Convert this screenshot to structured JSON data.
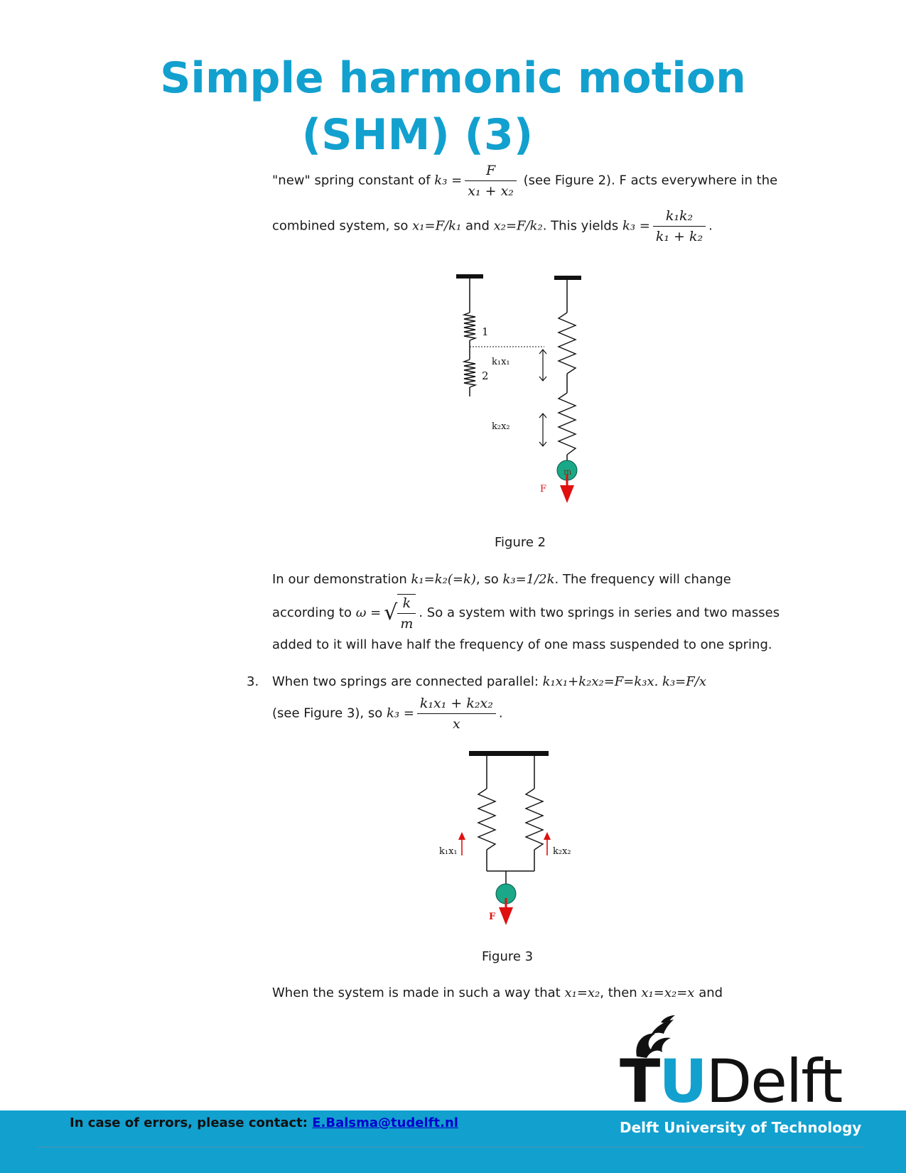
{
  "title": {
    "line1": "Simple harmonic motion",
    "line2": "(SHM) (3)"
  },
  "para1": {
    "pre": "\"new\" spring constant of ",
    "k3": "k₃ =",
    "frac_num": "F",
    "frac_den": "x₁ + x₂",
    "post": "(see Figure 2). F acts everywhere in the"
  },
  "para2": {
    "pre": "combined system, so ",
    "eq1": "x₁=F/k₁",
    "and": " and ",
    "eq2": "x₂=F/k₂",
    "yields": ". This yields ",
    "k3": "k₃ =",
    "frac_num": "k₁k₂",
    "frac_den": "k₁ + k₂",
    "end": "."
  },
  "figure2": {
    "label_1": "1",
    "label_2": "2",
    "label_k1x1": "k₁x₁",
    "label_k2x2": "k₂x₂",
    "label_m": "m",
    "label_F": "F",
    "caption": "Figure 2"
  },
  "para3": {
    "pre": "In our demonstration ",
    "eq": "k₁=k₂(=k)",
    "mid": ", so ",
    "eq2": "k₃=1/2k",
    "post": ". The frequency will change"
  },
  "para4": {
    "pre": "according to ",
    "omega": "ω =",
    "sqrt_num": "k",
    "sqrt_den": "m",
    "post": ". So a system with two springs in series and two masses"
  },
  "para5": {
    "text": "added to it will have half the frequency of one mass suspended to one spring."
  },
  "item3": {
    "number": "3.",
    "pre": "When two springs are connected parallel: ",
    "eq": "k₁x₁+k₂x₂=F=k₃x. k₃=F/x"
  },
  "para6": {
    "pre": "(see Figure 3), so ",
    "k3": "k₃ =",
    "frac_num": "k₁x₁ + k₂x₂",
    "frac_den": "x",
    "end": "."
  },
  "figure3": {
    "label_k1x1": "k₁x₁",
    "label_k2x2": "k₂x₂",
    "label_F": "F",
    "caption": "Figure 3"
  },
  "para7": {
    "pre": "When the system is made in such a way that ",
    "eq1": "x₁=x₂",
    "mid": ", then ",
    "eq2": "x₁=x₂=x",
    "post": " and"
  },
  "logo": {
    "t": "T",
    "u": "U",
    "delft": "Delft"
  },
  "footer": {
    "contact_label": "In case of errors, please contact: ",
    "contact_email": "E.Balsma@tudelft.nl",
    "university": "Delft University of Technology"
  },
  "colors": {
    "brand_blue": "#12a0cf",
    "arrow_red": "#e01010",
    "mass_green": "#1aa888"
  }
}
